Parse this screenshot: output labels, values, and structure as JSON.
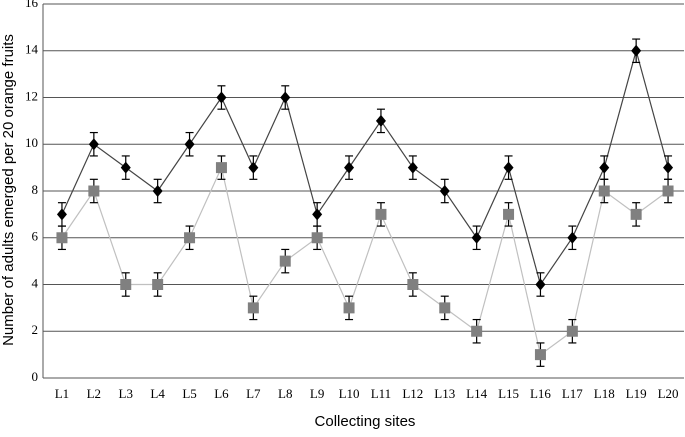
{
  "chart_data": {
    "type": "line",
    "x_label": "Collecting sites",
    "y_label": "Number of adults emerged per 20 orange fruits",
    "categories": [
      "L1",
      "L2",
      "L3",
      "L4",
      "L5",
      "L6",
      "L7",
      "L8",
      "L9",
      "L10",
      "L11",
      "L12",
      "L13",
      "L14",
      "L15",
      "L16",
      "L17",
      "L18",
      "L19",
      "L20"
    ],
    "series": [
      {
        "color": "#000000",
        "line_color": "#444444",
        "marker": "diamond",
        "values": [
          7,
          10,
          9,
          8,
          10,
          12,
          9,
          12,
          7,
          9,
          11,
          9,
          8,
          6,
          9,
          4,
          6,
          9,
          14,
          9
        ],
        "errors": [
          0.5,
          0.5,
          0.5,
          0.5,
          0.5,
          0.5,
          0.5,
          0.5,
          0.5,
          0.5,
          0.5,
          0.5,
          0.5,
          0.5,
          0.5,
          0.5,
          0.5,
          0.5,
          0.5,
          0.5
        ]
      },
      {
        "color": "#808080",
        "line_color": "#c0c0c0",
        "marker": "square",
        "values": [
          6,
          8,
          4,
          4,
          6,
          9,
          3,
          5,
          6,
          3,
          7,
          4,
          3,
          2,
          7,
          1,
          2,
          8,
          7,
          8
        ],
        "errors": [
          0.5,
          0.5,
          0.5,
          0.5,
          0.5,
          0.5,
          0.5,
          0.5,
          0.5,
          0.5,
          0.5,
          0.5,
          0.5,
          0.5,
          0.5,
          0.5,
          0.5,
          0.5,
          0.5,
          0.5
        ]
      }
    ],
    "ylim": [
      0,
      16
    ],
    "yticks": [
      0,
      2,
      4,
      6,
      8,
      10,
      12,
      14,
      16
    ],
    "grid": true
  }
}
